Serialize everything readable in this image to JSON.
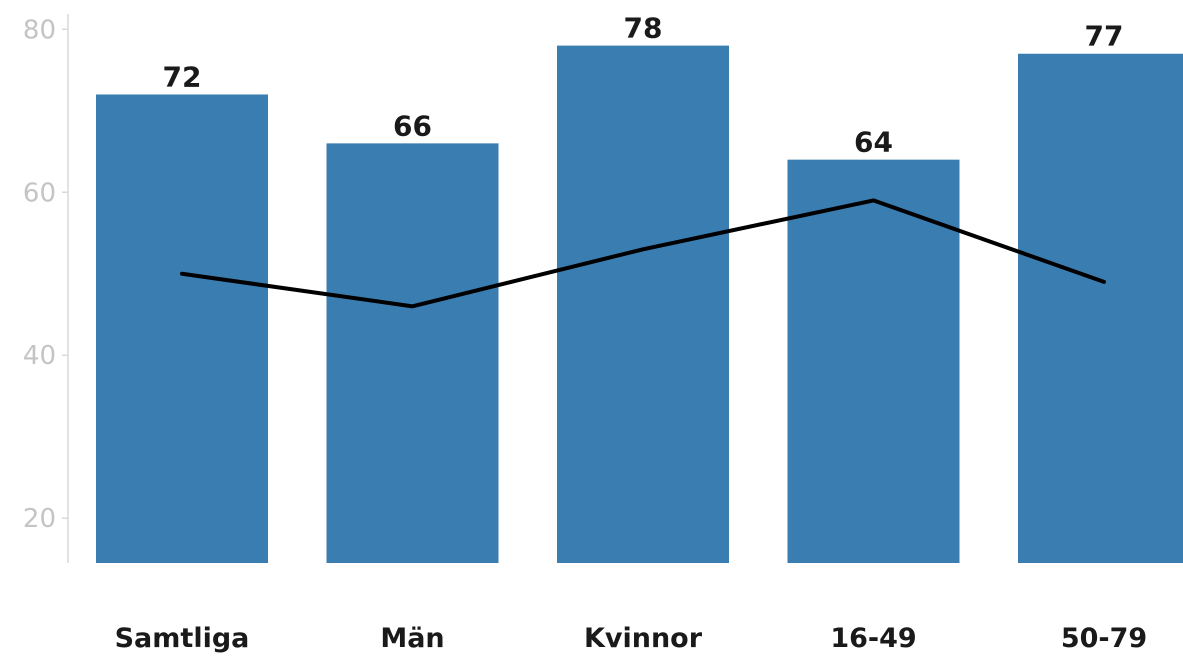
{
  "chart_data": {
    "type": "bar",
    "categories": [
      "Samtliga",
      "Män",
      "Kvinnor",
      "16-49",
      "50-79"
    ],
    "series": [
      {
        "type": "bar",
        "values": [
          72,
          66,
          78,
          64,
          77
        ],
        "color": "#3a7db1",
        "data_labels": [
          "72",
          "66",
          "78",
          "64",
          "77"
        ]
      },
      {
        "type": "line",
        "values": [
          50,
          46,
          53,
          59,
          49
        ],
        "color": "#000000"
      }
    ],
    "y_ticks": [
      "20",
      "40",
      "60",
      "80"
    ],
    "ylim": [
      14.5,
      82
    ],
    "grid": false,
    "legend": "none"
  }
}
